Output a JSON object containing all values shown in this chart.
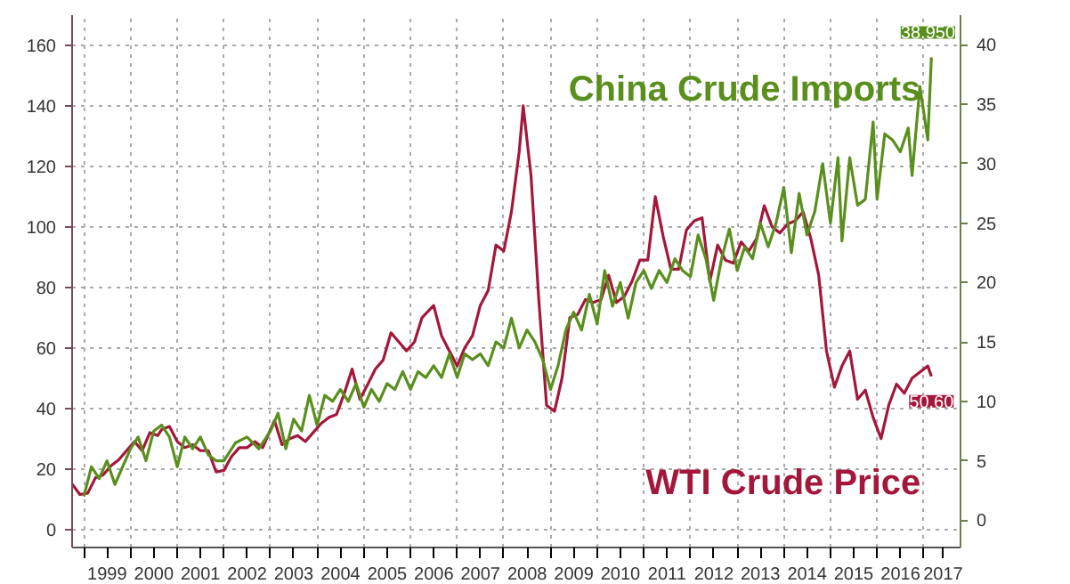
{
  "chart_data": {
    "type": "line",
    "grid": true,
    "line_style": "solid",
    "xlim": [
      "1998-10-01",
      "2017-10-15"
    ],
    "xticks": [
      {
        "value": "1999-01-01",
        "label": null
      },
      {
        "value": "1999-07-02",
        "label": "1999"
      },
      {
        "value": "2000-01-01",
        "label": null
      },
      {
        "value": "2000-07-02",
        "label": "2000"
      },
      {
        "value": "2001-01-01",
        "label": null
      },
      {
        "value": "2001-07-02",
        "label": "2001"
      },
      {
        "value": "2002-01-01",
        "label": null
      },
      {
        "value": "2002-07-02",
        "label": "2002"
      },
      {
        "value": "2003-01-01",
        "label": null
      },
      {
        "value": "2003-07-02",
        "label": "2003"
      },
      {
        "value": "2004-01-01",
        "label": null
      },
      {
        "value": "2004-07-02",
        "label": "2004"
      },
      {
        "value": "2005-01-01",
        "label": null
      },
      {
        "value": "2005-07-02",
        "label": "2005"
      },
      {
        "value": "2006-01-01",
        "label": null
      },
      {
        "value": "2006-07-02",
        "label": "2006"
      },
      {
        "value": "2007-01-01",
        "label": null
      },
      {
        "value": "2007-07-02",
        "label": "2007"
      },
      {
        "value": "2008-01-01",
        "label": null
      },
      {
        "value": "2008-07-02",
        "label": "2008"
      },
      {
        "value": "2009-01-01",
        "label": null
      },
      {
        "value": "2009-07-02",
        "label": "2009"
      },
      {
        "value": "2010-01-01",
        "label": null
      },
      {
        "value": "2010-07-02",
        "label": "2010"
      },
      {
        "value": "2011-01-01",
        "label": null
      },
      {
        "value": "2011-07-02",
        "label": "2011"
      },
      {
        "value": "2012-01-01",
        "label": null
      },
      {
        "value": "2012-07-02",
        "label": "2012"
      },
      {
        "value": "2013-01-01",
        "label": null
      },
      {
        "value": "2013-07-02",
        "label": "2013"
      },
      {
        "value": "2014-01-01",
        "label": null
      },
      {
        "value": "2014-07-02",
        "label": "2014"
      },
      {
        "value": "2015-01-01",
        "label": null
      },
      {
        "value": "2015-07-02",
        "label": "2015"
      },
      {
        "value": "2016-01-01",
        "label": null
      },
      {
        "value": "2016-07-02",
        "label": "2016"
      },
      {
        "value": "2017-01-01",
        "label": null
      },
      {
        "value": "2017-06-01",
        "label": "2017"
      }
    ],
    "ylim": [
      -6,
      170
    ],
    "yticks": [
      0,
      20,
      40,
      60,
      80,
      100,
      120,
      140,
      160
    ],
    "y2lim": [
      -2.3,
      42.5
    ],
    "y2ticks": [
      0,
      5,
      10,
      15,
      20,
      25,
      30,
      35,
      40
    ],
    "series": [
      {
        "name": "WTI Crude Price",
        "color": "#a3173b",
        "x": [
          "1998-10",
          "1998-12",
          "1999-02",
          "1999-04",
          "1999-06",
          "1999-08",
          "1999-10",
          "1999-12",
          "2000-02",
          "2000-04",
          "2000-06",
          "2000-08",
          "2000-09",
          "2000-11",
          "2001-01",
          "2001-03",
          "2001-05",
          "2001-07",
          "2001-09",
          "2001-11",
          "2002-01",
          "2002-03",
          "2002-05",
          "2002-07",
          "2002-09",
          "2002-11",
          "2003-02",
          "2003-04",
          "2003-06",
          "2003-08",
          "2003-10",
          "2003-12",
          "2004-02",
          "2004-04",
          "2004-06",
          "2004-08",
          "2004-10",
          "2004-12",
          "2005-02",
          "2005-04",
          "2005-06",
          "2005-08",
          "2005-10",
          "2005-12",
          "2006-02",
          "2006-04",
          "2006-07",
          "2006-09",
          "2006-11",
          "2007-01",
          "2007-03",
          "2007-05",
          "2007-07",
          "2007-09",
          "2007-11",
          "2008-01",
          "2008-03",
          "2008-05",
          "2008-06",
          "2008-08",
          "2008-10",
          "2008-12",
          "2009-02",
          "2009-04",
          "2009-06",
          "2009-08",
          "2009-10",
          "2009-12",
          "2010-02",
          "2010-04",
          "2010-06",
          "2010-08",
          "2010-10",
          "2010-12",
          "2011-02",
          "2011-04",
          "2011-06",
          "2011-08",
          "2011-10",
          "2011-12",
          "2012-02",
          "2012-04",
          "2012-06",
          "2012-08",
          "2012-10",
          "2012-12",
          "2013-02",
          "2013-04",
          "2013-06",
          "2013-08",
          "2013-10",
          "2013-12",
          "2014-02",
          "2014-04",
          "2014-06",
          "2014-08",
          "2014-10",
          "2014-12",
          "2015-02",
          "2015-04",
          "2015-06",
          "2015-08",
          "2015-10",
          "2015-12",
          "2016-02",
          "2016-04",
          "2016-06",
          "2016-08",
          "2016-10",
          "2016-12",
          "2017-02",
          "2017-03"
        ],
        "values": [
          15,
          11.5,
          12,
          17,
          18,
          21,
          23,
          26,
          29,
          26,
          32,
          31,
          33,
          34,
          29,
          27,
          28,
          26,
          26,
          19,
          19.5,
          24,
          27,
          27,
          29,
          27,
          36,
          28,
          30,
          31,
          29,
          32,
          35,
          37,
          38,
          45,
          53,
          43,
          48,
          53,
          56,
          65,
          62,
          59,
          62,
          70,
          74,
          64,
          59,
          54,
          60,
          64,
          74,
          79,
          94,
          92,
          105,
          125,
          140,
          117,
          76,
          41,
          39,
          50,
          70,
          71,
          76,
          75,
          76,
          84,
          75,
          77,
          82,
          89,
          89,
          110,
          97,
          86,
          86,
          99,
          102,
          103,
          82,
          94,
          89,
          88,
          95,
          92,
          96,
          107,
          100,
          98,
          101,
          102,
          105,
          96,
          84,
          59,
          47,
          54,
          59,
          43,
          46,
          37,
          30,
          41,
          48,
          45,
          50,
          52,
          54,
          50.6
        ],
        "value_labels": [
          null,
          null,
          null,
          null,
          null,
          null,
          null,
          null,
          null,
          null,
          null,
          null,
          null,
          null,
          null,
          null,
          null,
          null,
          null,
          null,
          null,
          null,
          null,
          null,
          null,
          null,
          null,
          null,
          null,
          null,
          null,
          null,
          null,
          null,
          null,
          null,
          null,
          null,
          null,
          null,
          null,
          null,
          null,
          null,
          null,
          null,
          null,
          null,
          null,
          null,
          null,
          null,
          null,
          null,
          null,
          null,
          null,
          null,
          null,
          null,
          null,
          null,
          null,
          null,
          null,
          null,
          null,
          null,
          null,
          null,
          null,
          null,
          null,
          null,
          null,
          null,
          null,
          null,
          null,
          null,
          null,
          null,
          null,
          null,
          null,
          null,
          null,
          null,
          null,
          null,
          null,
          null,
          null,
          null,
          null,
          null,
          null,
          null,
          null,
          null,
          null,
          null,
          null,
          null,
          null,
          null,
          null,
          null,
          null,
          null,
          null,
          "50.60"
        ]
      },
      {
        "name": "China Crude Imports",
        "color": "#5a8f1e",
        "axis": "y2",
        "x": [
          "1999-01",
          "1999-03",
          "1999-05",
          "1999-07",
          "1999-09",
          "1999-11",
          "2000-01",
          "2000-03",
          "2000-05",
          "2000-07",
          "2000-09",
          "2000-11",
          "2001-01",
          "2001-03",
          "2001-05",
          "2001-07",
          "2001-09",
          "2001-11",
          "2002-01",
          "2002-04",
          "2002-07",
          "2002-10",
          "2003-01",
          "2003-03",
          "2003-05",
          "2003-07",
          "2003-09",
          "2003-11",
          "2004-01",
          "2004-03",
          "2004-05",
          "2004-07",
          "2004-09",
          "2004-11",
          "2005-01",
          "2005-03",
          "2005-05",
          "2005-07",
          "2005-09",
          "2005-11",
          "2006-01",
          "2006-03",
          "2006-05",
          "2006-07",
          "2006-09",
          "2006-11",
          "2007-01",
          "2007-03",
          "2007-05",
          "2007-07",
          "2007-09",
          "2007-11",
          "2008-01",
          "2008-03",
          "2008-05",
          "2008-07",
          "2008-09",
          "2008-11",
          "2009-01",
          "2009-03",
          "2009-05",
          "2009-07",
          "2009-09",
          "2009-11",
          "2010-01",
          "2010-03",
          "2010-05",
          "2010-07",
          "2010-09",
          "2010-11",
          "2011-01",
          "2011-03",
          "2011-05",
          "2011-07",
          "2011-09",
          "2011-11",
          "2012-01",
          "2012-03",
          "2012-05",
          "2012-07",
          "2012-09",
          "2012-11",
          "2013-01",
          "2013-03",
          "2013-05",
          "2013-07",
          "2013-09",
          "2013-11",
          "2014-01",
          "2014-03",
          "2014-05",
          "2014-07",
          "2014-09",
          "2014-11",
          "2015-01",
          "2015-03",
          "2015-04",
          "2015-06",
          "2015-08",
          "2015-10",
          "2015-12",
          "2016-01",
          "2016-03",
          "2016-05",
          "2016-07",
          "2016-09",
          "2016-10",
          "2016-12",
          "2017-02",
          "2017-03"
        ],
        "values": [
          2,
          4.5,
          3.5,
          5,
          3,
          4.5,
          6,
          7,
          5,
          7.5,
          8,
          7,
          4.5,
          7,
          6,
          7,
          5.5,
          5,
          5,
          6.5,
          7,
          6,
          7.5,
          9,
          6,
          8.5,
          7.5,
          10.5,
          8,
          10.5,
          10,
          11,
          10,
          11.5,
          9.5,
          11,
          10,
          11.5,
          11,
          12.5,
          11,
          12.5,
          12,
          13,
          12,
          14,
          12,
          14,
          13.5,
          14,
          13,
          15,
          14.5,
          17,
          14.5,
          16,
          15,
          13.5,
          11,
          13,
          16,
          17.5,
          16,
          19,
          16.5,
          21,
          18,
          20,
          17,
          20,
          21,
          19.5,
          21,
          20,
          22,
          21,
          20.5,
          24,
          22,
          18.5,
          22,
          24.5,
          21,
          23,
          22,
          25,
          23,
          25,
          28,
          22.5,
          27.5,
          24,
          26,
          30,
          25,
          30.5,
          23.5,
          30.5,
          26.5,
          27,
          33.5,
          27,
          32.5,
          32,
          31,
          33,
          29,
          36.5,
          32,
          38.95
        ],
        "value_labels": [
          null,
          null,
          null,
          null,
          null,
          null,
          null,
          null,
          null,
          null,
          null,
          null,
          null,
          null,
          null,
          null,
          null,
          null,
          null,
          null,
          null,
          null,
          null,
          null,
          null,
          null,
          null,
          null,
          null,
          null,
          null,
          null,
          null,
          null,
          null,
          null,
          null,
          null,
          null,
          null,
          null,
          null,
          null,
          null,
          null,
          null,
          null,
          null,
          null,
          null,
          null,
          null,
          null,
          null,
          null,
          null,
          null,
          null,
          null,
          null,
          null,
          null,
          null,
          null,
          null,
          null,
          null,
          null,
          null,
          null,
          null,
          null,
          null,
          null,
          null,
          null,
          null,
          null,
          null,
          null,
          null,
          null,
          null,
          null,
          null,
          null,
          null,
          null,
          null,
          null,
          null,
          null,
          null,
          null,
          null,
          null,
          null,
          null,
          null,
          null,
          null,
          null,
          null,
          null,
          null,
          null,
          null,
          null,
          null,
          "38.950"
        ]
      }
    ]
  }
}
